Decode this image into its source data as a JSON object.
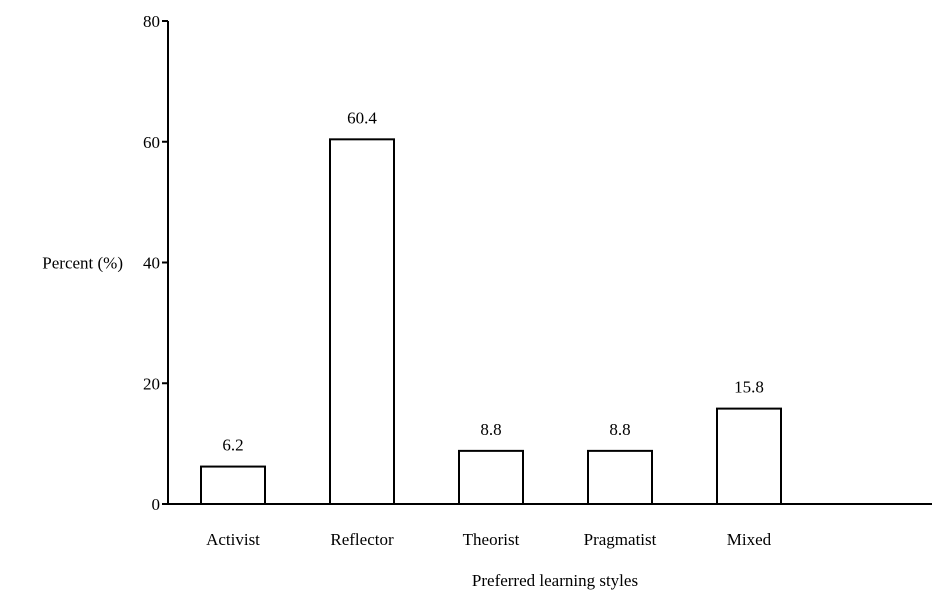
{
  "chart_data": {
    "type": "bar",
    "title": "",
    "xlabel": "Preferred learning styles",
    "ylabel": "Percent (%)",
    "categories": [
      "Activist",
      "Reflector",
      "Theorist",
      "Pragmatist",
      "Mixed"
    ],
    "values": [
      6.2,
      60.4,
      8.8,
      8.8,
      15.8
    ],
    "data_labels": [
      "6.2",
      "60.4",
      "8.8",
      "8.8",
      "15.8"
    ],
    "ylim": [
      0,
      80
    ],
    "yticks": [
      0,
      20,
      40,
      60,
      80
    ],
    "ytick_labels": [
      "0",
      "20",
      "40",
      "60",
      "80"
    ],
    "grid": false,
    "legend": "none",
    "bar_fill": "#ffffff",
    "bar_stroke": "#000000"
  }
}
